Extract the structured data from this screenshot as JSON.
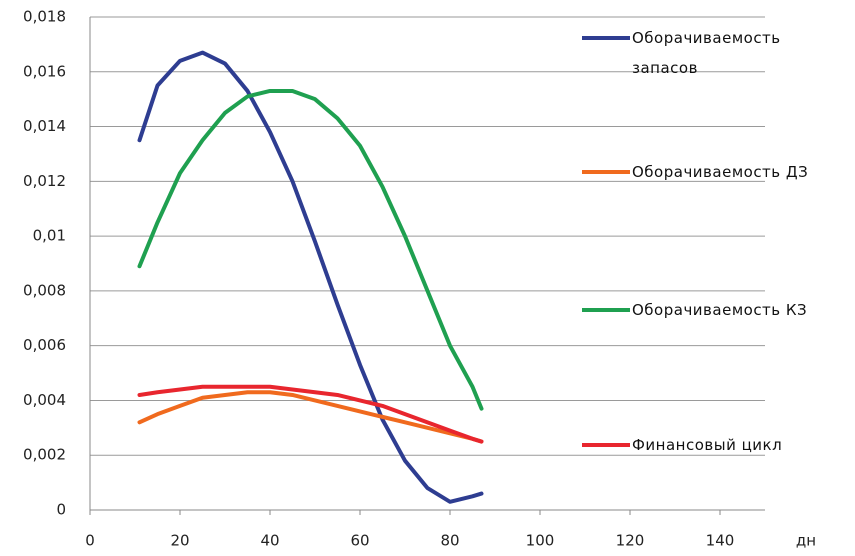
{
  "chart_data": {
    "type": "line",
    "xlabel": "дн",
    "x": [
      11,
      15,
      20,
      25,
      30,
      35,
      40,
      45,
      50,
      55,
      60,
      65,
      70,
      75,
      80,
      85,
      87
    ],
    "series": [
      {
        "name": "Оборачиваемость запасов",
        "color": "#2e3d91",
        "values": [
          0.0135,
          0.0155,
          0.0164,
          0.0167,
          0.0163,
          0.0153,
          0.0138,
          0.012,
          0.0098,
          0.0075,
          0.0053,
          0.0033,
          0.0018,
          0.0008,
          0.0003,
          0.0005,
          0.0006
        ]
      },
      {
        "name": "Оборачиваемость ДЗ",
        "color": "#f06a1e",
        "values": [
          0.0032,
          0.0035,
          0.0038,
          0.0041,
          0.0042,
          0.0043,
          0.0043,
          0.0042,
          0.004,
          0.0038,
          0.0036,
          0.0034,
          0.0032,
          0.003,
          0.0028,
          0.0026,
          0.0025
        ]
      },
      {
        "name": "Оборачиваемость КЗ",
        "color": "#1fa050",
        "values": [
          0.0089,
          0.0105,
          0.0123,
          0.0135,
          0.0145,
          0.0151,
          0.0153,
          0.0153,
          0.015,
          0.0143,
          0.0133,
          0.0118,
          0.01,
          0.008,
          0.006,
          0.0045,
          0.0037
        ]
      },
      {
        "name": "Финансовый цикл",
        "color": "#e8262e",
        "values": [
          0.0042,
          0.0043,
          0.0044,
          0.0045,
          0.0045,
          0.0045,
          0.0045,
          0.0044,
          0.0043,
          0.0042,
          0.004,
          0.0038,
          0.0035,
          0.0032,
          0.0029,
          0.0026,
          0.0025
        ]
      }
    ],
    "xlim": [
      0,
      150
    ],
    "xticks": [
      0,
      20,
      40,
      60,
      80,
      100,
      120,
      140
    ],
    "ylim": [
      0,
      0.018
    ],
    "yticks": [
      0,
      {
        "value": 0.002,
        "label": "0,002"
      },
      {
        "value": 0.004,
        "label": "0,004"
      },
      {
        "value": 0.006,
        "label": "0,006"
      },
      {
        "value": 0.008,
        "label": "0,008"
      },
      {
        "value": 0.01,
        "label": "0,01"
      },
      {
        "value": 0.012,
        "label": "0,012"
      },
      {
        "value": 0.014,
        "label": "0,014"
      },
      {
        "value": 0.016,
        "label": "0,016"
      },
      {
        "value": 0.018,
        "label": "0,018"
      }
    ],
    "grid": true,
    "legend": "right"
  }
}
